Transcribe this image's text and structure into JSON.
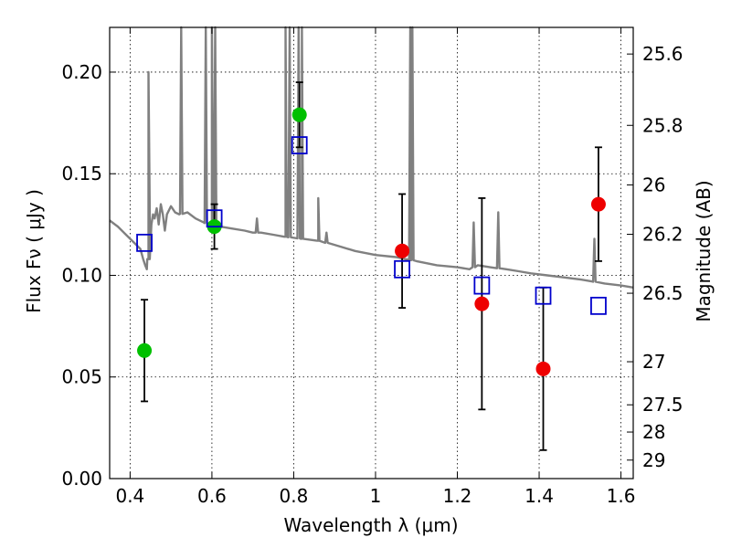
{
  "chart_data": {
    "type": "scatter",
    "xlabel": "Wavelength  λ (μm)",
    "ylabel": "Flux  Fν  ( μJy )",
    "ylabel_right": "Magnitude (AB)",
    "xlim": [
      0.35,
      1.63
    ],
    "ylim": [
      0.0,
      0.222
    ],
    "grid": true,
    "x_ticks": [
      {
        "value": 0.4,
        "label": "0.4"
      },
      {
        "value": 0.6,
        "label": "0.6"
      },
      {
        "value": 0.8,
        "label": "0.8"
      },
      {
        "value": 1.0,
        "label": "1"
      },
      {
        "value": 1.2,
        "label": "1.2"
      },
      {
        "value": 1.4,
        "label": "1.4"
      },
      {
        "value": 1.6,
        "label": "1.6"
      }
    ],
    "y_ticks": [
      {
        "value": 0.0,
        "label": "0.00"
      },
      {
        "value": 0.05,
        "label": "0.05"
      },
      {
        "value": 0.1,
        "label": "0.10"
      },
      {
        "value": 0.15,
        "label": "0.15"
      },
      {
        "value": 0.2,
        "label": "0.20"
      }
    ],
    "right_ticks": [
      {
        "flux": 0.2089,
        "label": "25.6"
      },
      {
        "flux": 0.1738,
        "label": "25.8"
      },
      {
        "flux": 0.1445,
        "label": "26"
      },
      {
        "flux": 0.1202,
        "label": "26.2"
      },
      {
        "flux": 0.0912,
        "label": "26.5"
      },
      {
        "flux": 0.0575,
        "label": "27"
      },
      {
        "flux": 0.0363,
        "label": "27.5"
      },
      {
        "flux": 0.0229,
        "label": "28"
      },
      {
        "flux": 0.0091,
        "label": "29"
      }
    ],
    "series": [
      {
        "marker": "circle",
        "color": "#00c000",
        "points": [
          {
            "x": 0.435,
            "y": 0.063,
            "err": 0.025
          },
          {
            "x": 0.606,
            "y": 0.124,
            "err": 0.011
          },
          {
            "x": 0.814,
            "y": 0.179,
            "err": 0.016
          }
        ]
      },
      {
        "marker": "circle",
        "color": "#ee0000",
        "points": [
          {
            "x": 1.065,
            "y": 0.112,
            "err": 0.028
          },
          {
            "x": 1.26,
            "y": 0.086,
            "err": 0.052
          },
          {
            "x": 1.41,
            "y": 0.054,
            "err": 0.04
          },
          {
            "x": 1.545,
            "y": 0.135,
            "err": 0.028
          }
        ]
      },
      {
        "marker": "open-square",
        "color": "#0000cc",
        "points": [
          {
            "x": 0.435,
            "y": 0.116
          },
          {
            "x": 0.606,
            "y": 0.128
          },
          {
            "x": 0.814,
            "y": 0.164
          },
          {
            "x": 1.065,
            "y": 0.103
          },
          {
            "x": 1.26,
            "y": 0.095
          },
          {
            "x": 1.41,
            "y": 0.09
          },
          {
            "x": 1.545,
            "y": 0.085
          }
        ]
      }
    ],
    "model_spectrum": {
      "color": "#808080",
      "points": [
        [
          0.35,
          0.127
        ],
        [
          0.37,
          0.124
        ],
        [
          0.39,
          0.12
        ],
        [
          0.41,
          0.116
        ],
        [
          0.425,
          0.113
        ],
        [
          0.432,
          0.108
        ],
        [
          0.437,
          0.105
        ],
        [
          0.441,
          0.103
        ],
        [
          0.445,
          0.108
        ],
        [
          0.448,
          0.131
        ],
        [
          0.452,
          0.125
        ],
        [
          0.456,
          0.13
        ],
        [
          0.46,
          0.128
        ],
        [
          0.465,
          0.133
        ],
        [
          0.47,
          0.125
        ],
        [
          0.475,
          0.135
        ],
        [
          0.48,
          0.13
        ],
        [
          0.485,
          0.122
        ],
        [
          0.49,
          0.13
        ],
        [
          0.5,
          0.134
        ],
        [
          0.51,
          0.131
        ],
        [
          0.52,
          0.13
        ],
        [
          0.54,
          0.131
        ],
        [
          0.56,
          0.128
        ],
        [
          0.58,
          0.126
        ],
        [
          0.6,
          0.125
        ],
        [
          0.62,
          0.124
        ],
        [
          0.65,
          0.123
        ],
        [
          0.68,
          0.122
        ],
        [
          0.7,
          0.121
        ],
        [
          0.72,
          0.121
        ],
        [
          0.75,
          0.12
        ],
        [
          0.78,
          0.119
        ],
        [
          0.82,
          0.118
        ],
        [
          0.86,
          0.117
        ],
        [
          0.9,
          0.115
        ],
        [
          0.95,
          0.112
        ],
        [
          1.0,
          0.11
        ],
        [
          1.05,
          0.109
        ],
        [
          1.1,
          0.107
        ],
        [
          1.15,
          0.105
        ],
        [
          1.2,
          0.104
        ],
        [
          1.23,
          0.103
        ],
        [
          1.25,
          0.105
        ],
        [
          1.28,
          0.104
        ],
        [
          1.32,
          0.103
        ],
        [
          1.35,
          0.102
        ],
        [
          1.38,
          0.101
        ],
        [
          1.42,
          0.1
        ],
        [
          1.46,
          0.099
        ],
        [
          1.5,
          0.098
        ],
        [
          1.53,
          0.097
        ],
        [
          1.56,
          0.096
        ],
        [
          1.6,
          0.095
        ],
        [
          1.63,
          0.094
        ]
      ],
      "lines": [
        {
          "x": 0.445,
          "peak": 0.2
        },
        {
          "x": 0.525,
          "peak": 0.222
        },
        {
          "x": 0.585,
          "peak": 0.222
        },
        {
          "x": 0.6,
          "peak": 0.222
        },
        {
          "x": 0.608,
          "peak": 0.222
        },
        {
          "x": 0.71,
          "peak": 0.128
        },
        {
          "x": 0.78,
          "peak": 0.222
        },
        {
          "x": 0.79,
          "peak": 0.222
        },
        {
          "x": 0.812,
          "peak": 0.222
        },
        {
          "x": 0.82,
          "peak": 0.222
        },
        {
          "x": 0.86,
          "peak": 0.138
        },
        {
          "x": 0.88,
          "peak": 0.121
        },
        {
          "x": 1.085,
          "peak": 0.222
        },
        {
          "x": 1.09,
          "peak": 0.222
        },
        {
          "x": 1.24,
          "peak": 0.126
        },
        {
          "x": 1.3,
          "peak": 0.131
        },
        {
          "x": 1.535,
          "peak": 0.118
        }
      ]
    }
  }
}
